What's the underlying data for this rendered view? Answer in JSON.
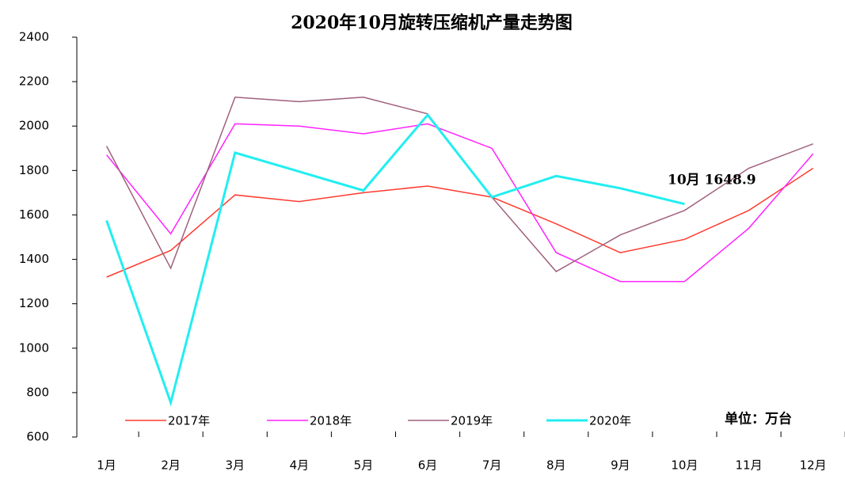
{
  "chart_data": {
    "type": "line",
    "title": "2020年10月旋转压缩机产量走势图",
    "categories": [
      "1月",
      "2月",
      "3月",
      "4月",
      "5月",
      "6月",
      "7月",
      "8月",
      "9月",
      "10月",
      "11月",
      "12月"
    ],
    "series": [
      {
        "name": "2017年",
        "color": "#ff3b2f",
        "values": [
          1320,
          1440,
          1690,
          1660,
          1700,
          1730,
          1680,
          1560,
          1430,
          1490,
          1620,
          1810
        ]
      },
      {
        "name": "2018年",
        "color": "#ff22ff",
        "values": [
          1870,
          1515,
          2010,
          2000,
          1965,
          2010,
          1900,
          1430,
          1300,
          1300,
          1540,
          1875
        ]
      },
      {
        "name": "2019年",
        "color": "#a0607e",
        "values": [
          1910,
          1360,
          2130,
          2110,
          2130,
          2055,
          1680,
          1345,
          1510,
          1620,
          1810,
          1920
        ]
      },
      {
        "name": "2020年",
        "color": "#22eef0",
        "values": [
          1575,
          755,
          1880,
          1795,
          1710,
          2050,
          1680,
          1775,
          1720,
          1648.9,
          null,
          null
        ]
      }
    ],
    "ylim": [
      600,
      2400
    ],
    "yticks": [
      600,
      800,
      1000,
      1200,
      1400,
      1600,
      1800,
      2000,
      2200,
      2400
    ],
    "annotation": "10月 1648.9",
    "unit": "单位：万台",
    "legend": "bottom"
  }
}
